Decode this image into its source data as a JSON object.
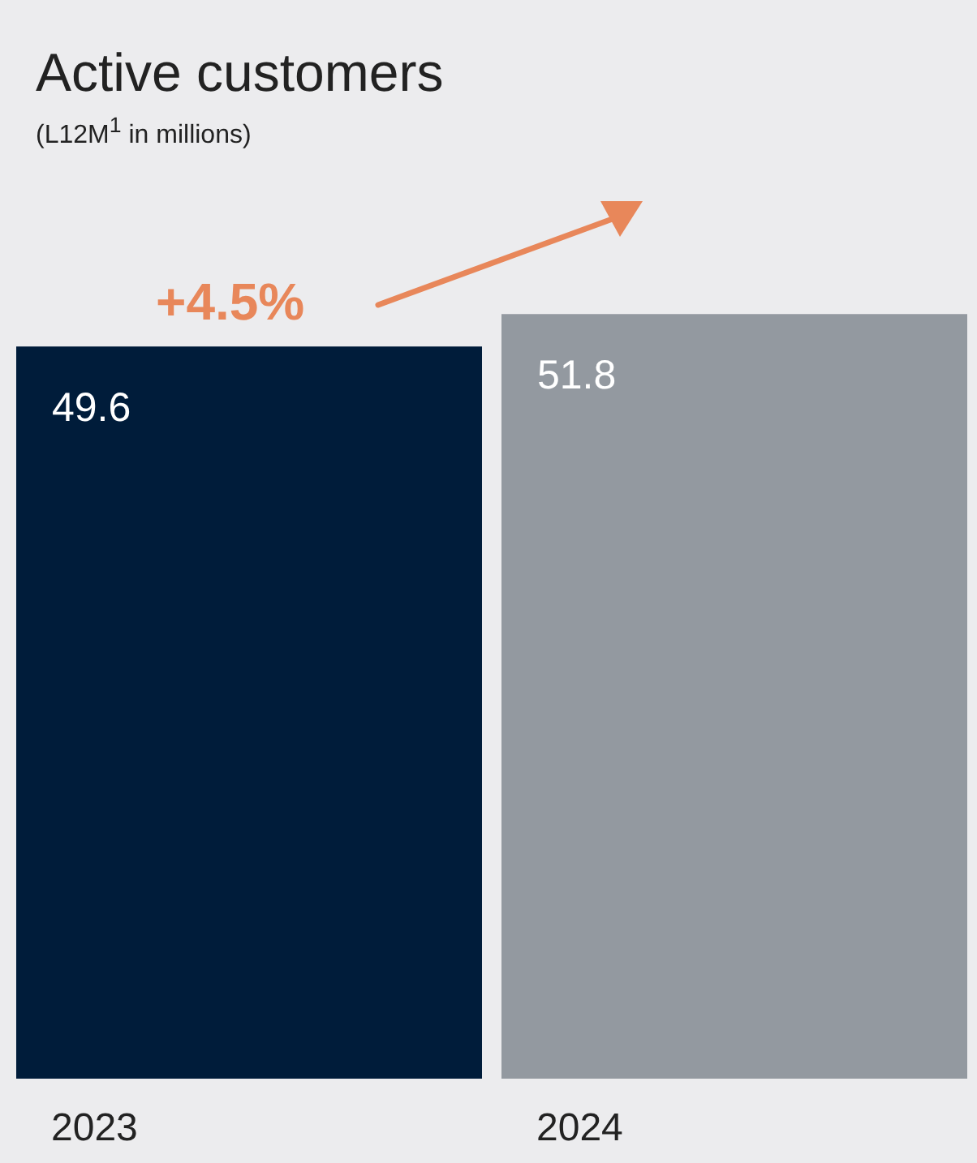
{
  "chart_data": {
    "type": "bar",
    "title": "Active customers",
    "subtitle": "(L12M$^{1}$ in millions)",
    "categories": [
      "2023",
      "2024"
    ],
    "values": [
      49.6,
      51.8
    ],
    "colors": [
      "#001c3a",
      "#9399a0"
    ],
    "data_labels": true,
    "annotations": [
      "+4.5%"
    ]
  }
}
